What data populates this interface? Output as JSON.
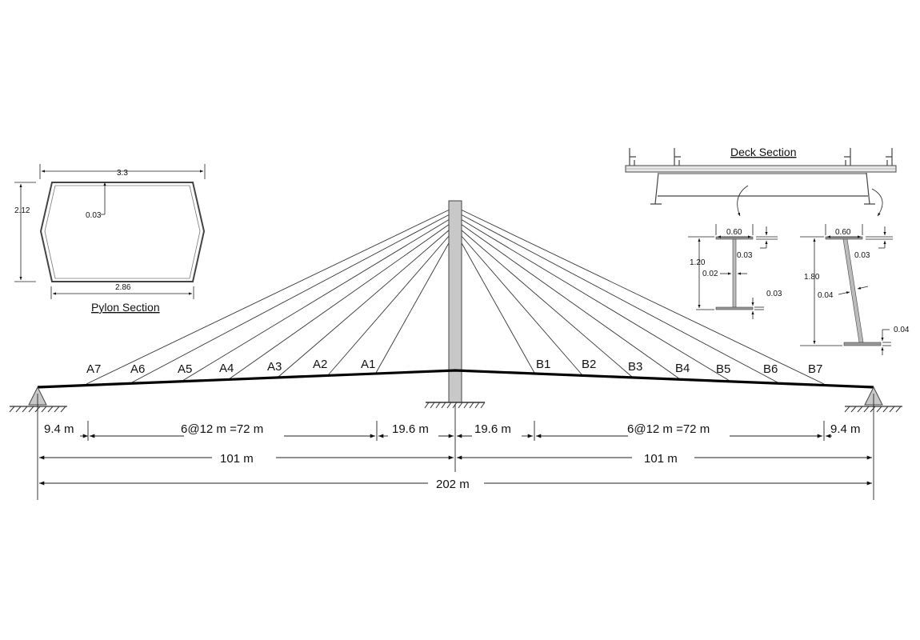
{
  "sections": {
    "pylon_section": {
      "title": "Pylon Section",
      "top_width": "3.3",
      "bottom_width": "2.86",
      "height": "2.12",
      "thickness": "0.03"
    },
    "deck_section": {
      "title": "Deck Section"
    },
    "girder_inner": {
      "flange_width": "0.60",
      "flange_thickness": "0.03",
      "height": "1.20",
      "web_thickness": "0.02",
      "bottom_flange_thickness": "0.03"
    },
    "girder_outer": {
      "flange_width": "0.60",
      "flange_thickness": "0.03",
      "height": "1.80",
      "web_thickness": "0.04",
      "bottom_flange_thickness": "0.04"
    }
  },
  "cables": {
    "left": [
      "A7",
      "A6",
      "A5",
      "A4",
      "A3",
      "A2",
      "A1"
    ],
    "right": [
      "B1",
      "B2",
      "B3",
      "B4",
      "B5",
      "B6",
      "B7"
    ]
  },
  "dimensions": {
    "end_span_left": "9.4 m",
    "cable_spacing_left": "6@12 m =72 m",
    "pylon_gap_left": "19.6 m",
    "pylon_gap_right": "19.6 m",
    "cable_spacing_right": "6@12 m =72 m",
    "end_span_right": "9.4 m",
    "half_span_left": "101 m",
    "half_span_right": "101 m",
    "total_span": "202 m"
  }
}
